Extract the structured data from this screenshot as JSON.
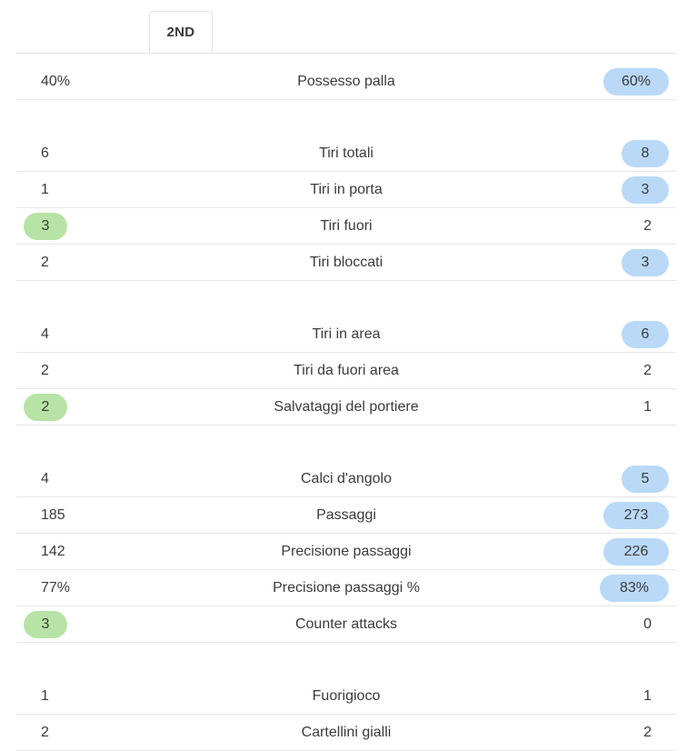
{
  "tab": {
    "label": "2ND"
  },
  "colors": {
    "home_highlight": "#b8e3a6",
    "away_highlight": "#b9d9f7"
  },
  "stats": [
    {
      "label": "Possesso palla",
      "home": "40%",
      "away": "60%",
      "leader": "away"
    },
    {
      "label": "Tiri totali",
      "home": "6",
      "away": "8",
      "leader": "away"
    },
    {
      "label": "Tiri in porta",
      "home": "1",
      "away": "3",
      "leader": "away"
    },
    {
      "label": "Tiri fuori",
      "home": "3",
      "away": "2",
      "leader": "home"
    },
    {
      "label": "Tiri bloccati",
      "home": "2",
      "away": "3",
      "leader": "away"
    },
    {
      "label": "Tiri in area",
      "home": "4",
      "away": "6",
      "leader": "away"
    },
    {
      "label": "Tiri da fuori area",
      "home": "2",
      "away": "2",
      "leader": "none"
    },
    {
      "label": "Salvataggi del portiere",
      "home": "2",
      "away": "1",
      "leader": "home"
    },
    {
      "label": "Calci d'angolo",
      "home": "4",
      "away": "5",
      "leader": "away"
    },
    {
      "label": "Passaggi",
      "home": "185",
      "away": "273",
      "leader": "away"
    },
    {
      "label": "Precisione passaggi",
      "home": "142",
      "away": "226",
      "leader": "away"
    },
    {
      "label": "Precisione passaggi %",
      "home": "77%",
      "away": "83%",
      "leader": "away"
    },
    {
      "label": "Counter attacks",
      "home": "3",
      "away": "0",
      "leader": "home"
    },
    {
      "label": "Fuorigioco",
      "home": "1",
      "away": "1",
      "leader": "none"
    },
    {
      "label": "Cartellini gialli",
      "home": "2",
      "away": "2",
      "leader": "none"
    }
  ]
}
